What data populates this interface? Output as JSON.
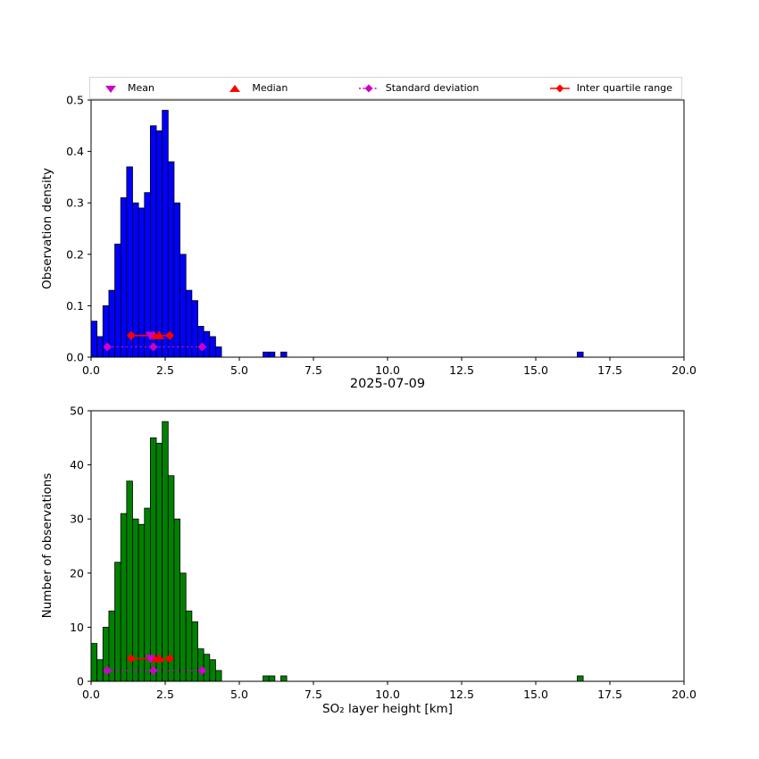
{
  "figure": {
    "title": "2025-07-09",
    "xlabel": "SO₂ layer height [km]",
    "top_ylabel": "Observation density",
    "bottom_ylabel": "Number of observations"
  },
  "legend": {
    "items": [
      {
        "label": "Mean",
        "marker": "triangle-down",
        "color": "#cc00cc"
      },
      {
        "label": "Median",
        "marker": "triangle-up",
        "color": "#ff0000"
      },
      {
        "label": "Standard deviation",
        "marker": "diamond-dotted-line",
        "color": "#cc00cc"
      },
      {
        "label": "Inter quartile range",
        "marker": "diamond-solid-line",
        "color": "#ff0000"
      }
    ]
  },
  "chart_data": [
    {
      "type": "bar",
      "panel": "top",
      "ylabel": "Observation density",
      "bar_color": "#0000ff",
      "edge_color": "#000000",
      "xlim": [
        0,
        20
      ],
      "ylim": [
        0,
        0.5
      ],
      "bin_width": 0.2,
      "bin_left": [
        0.0,
        0.2,
        0.4,
        0.6,
        0.8,
        1.0,
        1.2,
        1.4,
        1.6,
        1.8,
        2.0,
        2.2,
        2.4,
        2.6,
        2.8,
        3.0,
        3.2,
        3.4,
        3.6,
        3.8,
        4.0,
        4.2,
        5.8,
        6.0,
        6.4,
        16.4
      ],
      "values": [
        0.07,
        0.04,
        0.1,
        0.13,
        0.22,
        0.31,
        0.37,
        0.3,
        0.29,
        0.32,
        0.45,
        0.44,
        0.48,
        0.38,
        0.3,
        0.2,
        0.13,
        0.11,
        0.06,
        0.05,
        0.04,
        0.02,
        0.01,
        0.01,
        0.01,
        0.01
      ],
      "xtick_values": [
        0,
        2.5,
        5,
        7.5,
        10,
        12.5,
        15,
        17.5,
        20
      ],
      "xtick_labels": [
        "0.0",
        "2.5",
        "5.0",
        "7.5",
        "10.0",
        "12.5",
        "15.0",
        "17.5",
        "20.0"
      ],
      "ytick_values": [
        0,
        0.1,
        0.2,
        0.3,
        0.4,
        0.5
      ],
      "ytick_labels": [
        "0.0",
        "0.1",
        "0.2",
        "0.3",
        "0.4",
        "0.5"
      ],
      "markers": {
        "mean": 2.0,
        "median": 2.3,
        "iqr": [
          1.35,
          2.65
        ],
        "iqr_center": 2.1,
        "std_range": [
          0.55,
          3.75
        ],
        "std_center": 2.1,
        "iqr_row_y": 0.042,
        "std_row_y": 0.02
      }
    },
    {
      "type": "bar",
      "panel": "bottom",
      "ylabel": "Number of observations",
      "bar_color": "#008000",
      "edge_color": "#000000",
      "xlim": [
        0,
        20
      ],
      "ylim": [
        0,
        50
      ],
      "bin_width": 0.2,
      "bin_left": [
        0.0,
        0.2,
        0.4,
        0.6,
        0.8,
        1.0,
        1.2,
        1.4,
        1.6,
        1.8,
        2.0,
        2.2,
        2.4,
        2.6,
        2.8,
        3.0,
        3.2,
        3.4,
        3.6,
        3.8,
        4.0,
        4.2,
        5.8,
        6.0,
        6.4,
        16.4
      ],
      "values": [
        7,
        4,
        10,
        13,
        22,
        31,
        37,
        30,
        29,
        32,
        45,
        44,
        48,
        38,
        30,
        20,
        13,
        11,
        6,
        5,
        4,
        2,
        1,
        1,
        1,
        1
      ],
      "xtick_values": [
        0,
        2.5,
        5,
        7.5,
        10,
        12.5,
        15,
        17.5,
        20
      ],
      "xtick_labels": [
        "0.0",
        "2.5",
        "5.0",
        "7.5",
        "10.0",
        "12.5",
        "15.0",
        "17.5",
        "20.0"
      ],
      "ytick_values": [
        0,
        10,
        20,
        30,
        40,
        50
      ],
      "ytick_labels": [
        "0",
        "10",
        "20",
        "30",
        "40",
        "50"
      ],
      "markers": {
        "mean": 2.0,
        "median": 2.3,
        "iqr": [
          1.35,
          2.65
        ],
        "iqr_center": 2.1,
        "std_range": [
          0.55,
          3.75
        ],
        "std_center": 2.1,
        "iqr_row_y": 4.2,
        "std_row_y": 2.0
      }
    }
  ]
}
